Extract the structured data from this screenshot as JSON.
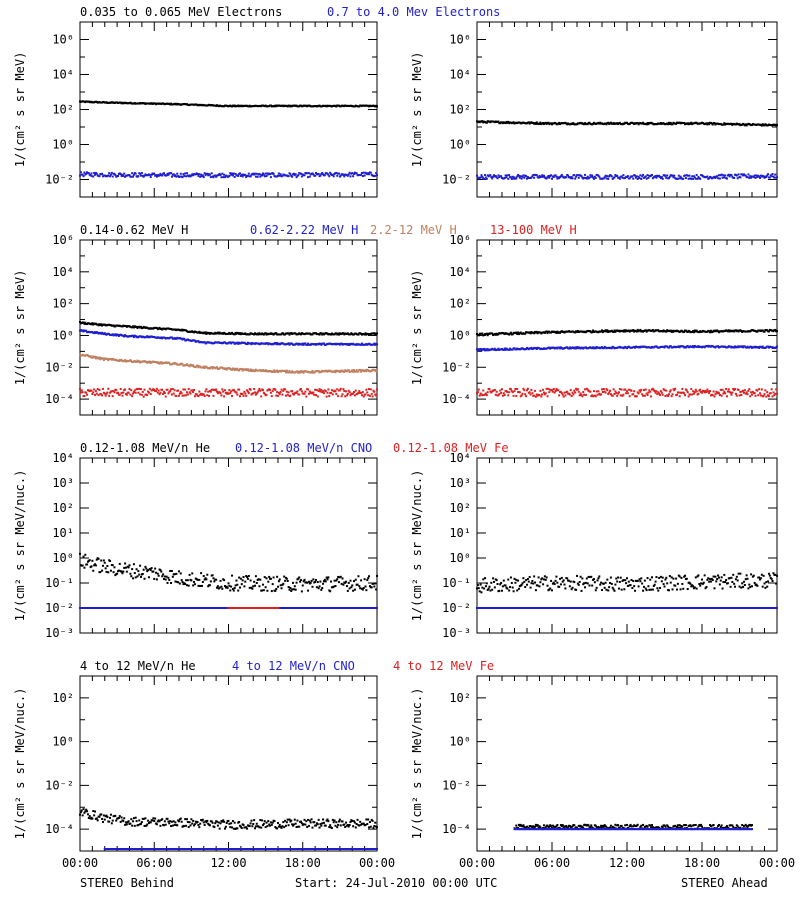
{
  "colors": {
    "black": "#000000",
    "blue": "#1f1fd0",
    "brown": "#c08060",
    "red": "#e02020"
  },
  "footer": {
    "left": "STEREO Behind",
    "center": "Start: 24-Jul-2010 00:00 UTC",
    "right": "STEREO Ahead"
  },
  "chart_data": [
    {
      "type": "scatter",
      "panel": "electrons",
      "ylabel": "1/(cm² s sr MeV)",
      "yscale": "log",
      "ylim_exp": [
        -3,
        7
      ],
      "ytick_exps": [
        -2,
        0,
        2,
        4,
        6
      ],
      "x_ticks": [
        "00:00",
        "06:00",
        "12:00",
        "18:00",
        "00:00"
      ],
      "legend": [
        {
          "text": "0.035 to 0.065 MeV Electrons",
          "color": "black"
        },
        {
          "text": "0.7 to 4.0 Mev Electrons",
          "color": "blue"
        }
      ],
      "series": [
        {
          "spacecraft": "STEREO Behind",
          "color": "black",
          "hours": [
            0,
            2,
            5,
            8,
            12,
            16,
            20,
            24
          ],
          "log10_values": [
            2.45,
            2.4,
            2.35,
            2.3,
            2.2,
            2.2,
            2.2,
            2.2
          ],
          "scatter": 0.03
        },
        {
          "spacecraft": "STEREO Behind",
          "color": "blue",
          "hours": [
            0,
            6,
            12,
            18,
            24
          ],
          "log10_values": [
            -1.7,
            -1.75,
            -1.75,
            -1.75,
            -1.7
          ],
          "scatter": 0.12
        },
        {
          "spacecraft": "STEREO Ahead",
          "color": "black",
          "hours": [
            0,
            6,
            12,
            18,
            24
          ],
          "log10_values": [
            1.3,
            1.2,
            1.2,
            1.2,
            1.1
          ],
          "scatter": 0.05
        },
        {
          "spacecraft": "STEREO Ahead",
          "color": "blue",
          "hours": [
            0,
            6,
            12,
            18,
            24
          ],
          "log10_values": [
            -1.85,
            -1.85,
            -1.85,
            -1.85,
            -1.8
          ],
          "scatter": 0.12
        }
      ]
    },
    {
      "type": "scatter",
      "panel": "protons",
      "ylabel": "1/(cm² s sr MeV)",
      "yscale": "log",
      "ylim_exp": [
        -5,
        6
      ],
      "ytick_exps": [
        -4,
        -2,
        0,
        2,
        4,
        6
      ],
      "x_ticks": [
        "00:00",
        "06:00",
        "12:00",
        "18:00",
        "00:00"
      ],
      "legend": [
        {
          "text": "0.14-0.62 MeV H",
          "color": "black"
        },
        {
          "text": "0.62-2.22 MeV H",
          "color": "blue"
        },
        {
          "text": "2.2-12 MeV H",
          "color": "brown"
        },
        {
          "text": "13-100 MeV H",
          "color": "red"
        }
      ],
      "series": [
        {
          "spacecraft": "STEREO Behind",
          "color": "black",
          "hours": [
            0,
            2,
            4,
            6,
            8,
            10,
            14,
            18,
            24
          ],
          "log10_values": [
            0.8,
            0.65,
            0.55,
            0.45,
            0.35,
            0.15,
            0.1,
            0.1,
            0.1
          ],
          "scatter": 0.05
        },
        {
          "spacecraft": "STEREO Behind",
          "color": "blue",
          "hours": [
            0,
            2,
            4,
            6,
            8,
            10,
            14,
            18,
            24
          ],
          "log10_values": [
            0.3,
            0.1,
            -0.05,
            -0.1,
            -0.2,
            -0.45,
            -0.5,
            -0.55,
            -0.55
          ],
          "scatter": 0.05
        },
        {
          "spacecraft": "STEREO Behind",
          "color": "brown",
          "hours": [
            0,
            2,
            4,
            6,
            8,
            10,
            14,
            18,
            24
          ],
          "log10_values": [
            -1.2,
            -1.5,
            -1.6,
            -1.7,
            -1.8,
            -2.0,
            -2.2,
            -2.3,
            -2.2
          ],
          "scatter": 0.06
        },
        {
          "spacecraft": "STEREO Behind",
          "color": "red",
          "hours": [
            0,
            6,
            12,
            18,
            24
          ],
          "log10_values": [
            -3.6,
            -3.6,
            -3.6,
            -3.6,
            -3.6
          ],
          "scatter": 0.25
        },
        {
          "spacecraft": "STEREO Ahead",
          "color": "black",
          "hours": [
            0,
            6,
            12,
            18,
            24
          ],
          "log10_values": [
            0.05,
            0.2,
            0.3,
            0.25,
            0.3
          ],
          "scatter": 0.06
        },
        {
          "spacecraft": "STEREO Ahead",
          "color": "blue",
          "hours": [
            0,
            6,
            12,
            18,
            24
          ],
          "log10_values": [
            -0.9,
            -0.8,
            -0.75,
            -0.7,
            -0.75
          ],
          "scatter": 0.05
        },
        {
          "spacecraft": "STEREO Ahead",
          "color": "red",
          "hours": [
            0,
            6,
            12,
            18,
            24
          ],
          "log10_values": [
            -3.6,
            -3.6,
            -3.6,
            -3.6,
            -3.6
          ],
          "scatter": 0.25
        }
      ]
    },
    {
      "type": "scatter",
      "panel": "low-energy-ions",
      "ylabel": "1/(cm² s sr MeV/nuc.)",
      "yscale": "log",
      "ylim_exp": [
        -3,
        4
      ],
      "ytick_exps": [
        -3,
        -2,
        -1,
        0,
        1,
        2,
        3,
        4
      ],
      "x_ticks": [
        "00:00",
        "06:00",
        "12:00",
        "18:00",
        "00:00"
      ],
      "legend": [
        {
          "text": "0.12-1.08 MeV/n He",
          "color": "black"
        },
        {
          "text": "0.12-1.08 MeV/n CNO",
          "color": "blue"
        },
        {
          "text": "0.12-1.08 MeV Fe",
          "color": "red"
        }
      ],
      "series": [
        {
          "spacecraft": "STEREO Behind",
          "color": "black",
          "hours": [
            0,
            2,
            4,
            6,
            8,
            12,
            18,
            24
          ],
          "log10_values": [
            -0.1,
            -0.35,
            -0.5,
            -0.6,
            -0.8,
            -1.0,
            -1.05,
            -1.0
          ],
          "scatter": 0.3
        },
        {
          "spacecraft": "STEREO Behind",
          "color": "blue",
          "hours": [
            0,
            12,
            24
          ],
          "log10_values": [
            -2,
            -2,
            -2
          ],
          "scatter": 0
        },
        {
          "spacecraft": "STEREO Behind",
          "color": "red",
          "hours": [
            12,
            14,
            16
          ],
          "log10_values": [
            -2,
            -2,
            -2
          ],
          "scatter": 0
        },
        {
          "spacecraft": "STEREO Ahead",
          "color": "black",
          "hours": [
            0,
            6,
            12,
            18,
            24
          ],
          "log10_values": [
            -1.1,
            -1.0,
            -1.05,
            -0.95,
            -0.9
          ],
          "scatter": 0.3
        },
        {
          "spacecraft": "STEREO Ahead",
          "color": "blue",
          "hours": [
            0,
            12,
            24
          ],
          "log10_values": [
            -2,
            -2,
            -2
          ],
          "scatter": 0
        }
      ]
    },
    {
      "type": "scatter",
      "panel": "high-energy-ions",
      "ylabel": "1/(cm² s sr MeV/nuc.)",
      "yscale": "log",
      "ylim_exp": [
        -5,
        3
      ],
      "ytick_exps": [
        -4,
        -2,
        0,
        2
      ],
      "x_ticks": [
        "00:00",
        "06:00",
        "12:00",
        "18:00",
        "00:00"
      ],
      "legend": [
        {
          "text": "4 to 12 MeV/n He",
          "color": "black"
        },
        {
          "text": "4 to 12 MeV/n CNO",
          "color": "blue"
        },
        {
          "text": "4 to 12 MeV Fe",
          "color": "red"
        }
      ],
      "series": [
        {
          "spacecraft": "STEREO Behind",
          "color": "black",
          "hours": [
            0,
            2,
            4,
            8,
            12,
            18,
            24
          ],
          "log10_values": [
            -3.2,
            -3.5,
            -3.65,
            -3.7,
            -3.8,
            -3.75,
            -3.75
          ],
          "scatter": 0.2
        },
        {
          "spacecraft": "STEREO Behind",
          "color": "blue",
          "hours": [
            2,
            24
          ],
          "log10_values": [
            -5,
            -5
          ],
          "scatter": 0
        },
        {
          "spacecraft": "STEREO Ahead",
          "color": "black",
          "hours": [
            3,
            22
          ],
          "log10_values": [
            -3.9,
            -3.9
          ],
          "scatter": 0.1
        },
        {
          "spacecraft": "STEREO Ahead",
          "color": "blue",
          "hours": [
            3,
            22
          ],
          "log10_values": [
            -4,
            -4
          ],
          "scatter": 0
        }
      ]
    }
  ]
}
